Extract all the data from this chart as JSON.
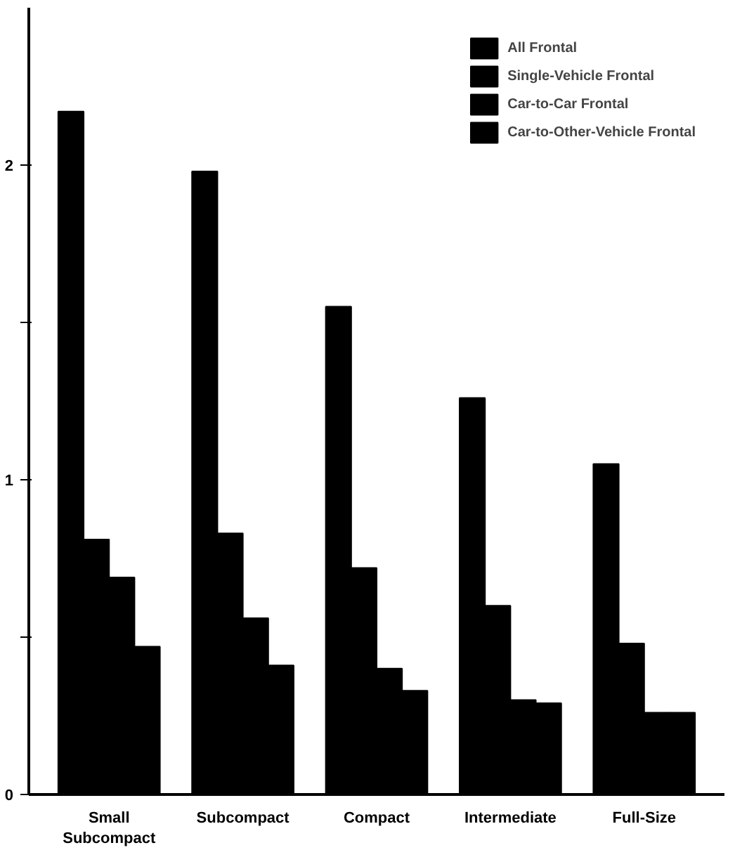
{
  "chart_data": {
    "type": "bar",
    "categories": [
      "Small\nSubcompact",
      "Subcompact",
      "Compact",
      "Intermediate",
      "Full-Size"
    ],
    "series": [
      {
        "name": "All Frontal",
        "color": "#000000",
        "values": [
          2.17,
          1.98,
          1.55,
          1.26,
          1.05
        ]
      },
      {
        "name": "Single-Vehicle Frontal",
        "color": "#000000",
        "values": [
          0.81,
          0.83,
          0.72,
          0.6,
          0.48
        ]
      },
      {
        "name": "Car-to-Car Frontal",
        "color": "#000000",
        "values": [
          0.69,
          0.56,
          0.4,
          0.3,
          0.26
        ]
      },
      {
        "name": "Car-to-Other-Vehicle Frontal",
        "color": "#000000",
        "values": [
          0.47,
          0.41,
          0.33,
          0.29,
          0.26
        ]
      }
    ],
    "ylim": [
      0,
      2.5
    ],
    "yticks": [
      0,
      {
        "value": 0.5,
        "label": null
      },
      1,
      {
        "value": 1.5,
        "label": null
      },
      2
    ],
    "legend": "top right",
    "grid": false
  }
}
